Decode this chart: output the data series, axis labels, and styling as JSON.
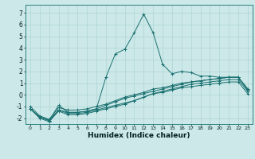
{
  "xlabel": "Humidex (Indice chaleur)",
  "background_color": "#cce8e8",
  "grid_color": "#afd4d4",
  "line_color": "#1a7070",
  "xlim": [
    -0.5,
    23.5
  ],
  "ylim": [
    -2.5,
    7.7
  ],
  "yticks": [
    -2,
    -1,
    0,
    1,
    2,
    3,
    4,
    5,
    6,
    7
  ],
  "xticks": [
    0,
    1,
    2,
    3,
    4,
    5,
    6,
    7,
    8,
    9,
    10,
    11,
    12,
    13,
    14,
    15,
    16,
    17,
    18,
    19,
    20,
    21,
    22,
    23
  ],
  "series": [
    [
      -1.2,
      -1.9,
      -2.2,
      -0.9,
      -1.5,
      -1.5,
      -1.4,
      -1.2,
      1.5,
      3.5,
      3.9,
      5.3,
      6.9,
      5.3,
      2.6,
      1.8,
      2.0,
      1.9,
      1.6,
      1.6,
      1.5,
      1.5,
      1.5,
      0.5
    ],
    [
      -1.2,
      -1.9,
      -2.2,
      -1.3,
      -1.5,
      -1.5,
      -1.4,
      -1.2,
      -0.9,
      -0.6,
      -0.3,
      -0.1,
      0.1,
      0.3,
      0.5,
      0.7,
      0.9,
      1.1,
      1.2,
      1.3,
      1.4,
      1.5,
      1.5,
      0.5
    ],
    [
      -1.2,
      -1.9,
      -2.2,
      -1.3,
      -1.6,
      -1.6,
      -1.5,
      -1.3,
      -1.1,
      -0.9,
      -0.7,
      -0.5,
      -0.2,
      0.1,
      0.3,
      0.5,
      0.7,
      0.9,
      1.0,
      1.1,
      1.2,
      1.3,
      1.3,
      0.3
    ],
    [
      -1.2,
      -2.0,
      -2.3,
      -1.4,
      -1.7,
      -1.7,
      -1.6,
      -1.4,
      -1.2,
      -1.0,
      -0.8,
      -0.5,
      -0.2,
      0.1,
      0.2,
      0.4,
      0.6,
      0.7,
      0.8,
      0.9,
      1.0,
      1.1,
      1.1,
      0.1
    ],
    [
      -1.0,
      -1.8,
      -2.1,
      -1.1,
      -1.3,
      -1.3,
      -1.2,
      -1.0,
      -0.8,
      -0.5,
      -0.2,
      0.0,
      0.2,
      0.5,
      0.6,
      0.8,
      1.0,
      1.1,
      1.2,
      1.3,
      1.4,
      1.5,
      1.5,
      0.4
    ]
  ]
}
